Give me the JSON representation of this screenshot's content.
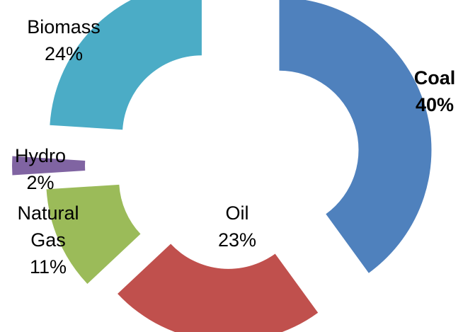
{
  "chart_data": {
    "type": "pie",
    "style": "exploded donut",
    "title": "",
    "slices": [
      {
        "name": "Coal",
        "value": 40,
        "label": [
          "Coal",
          "40%"
        ],
        "color": "#4F81BD",
        "bold": true
      },
      {
        "name": "Oil",
        "value": 23,
        "label": [
          "Oil",
          "23%"
        ],
        "color": "#C0504D",
        "bold": false
      },
      {
        "name": "Natural Gas",
        "value": 11,
        "label": [
          "Natural",
          "Gas",
          "11%"
        ],
        "color": "#9BBB59",
        "bold": false
      },
      {
        "name": "Hydro",
        "value": 2,
        "label": [
          "Hydro",
          "2%"
        ],
        "color": "#8064A2",
        "bold": false
      },
      {
        "name": "Biomass",
        "value": 24,
        "label": [
          "Biomass",
          "24%"
        ],
        "color": "#4BACC6",
        "bold": false
      }
    ]
  }
}
